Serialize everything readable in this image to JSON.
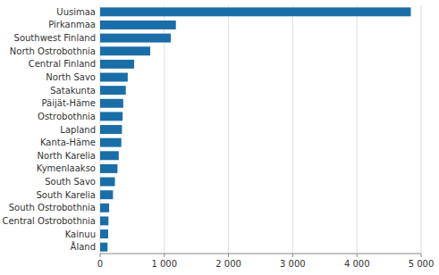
{
  "chart_data": {
    "type": "bar",
    "orientation": "horizontal",
    "categories": [
      "Uusimaa",
      "Pirkanmaa",
      "Southwest Finland",
      "North Ostrobothnia",
      "Central Finland",
      "North Savo",
      "Satakunta",
      "Päijät-Häme",
      "Ostrobothnia",
      "Lapland",
      "Kanta-Häme",
      "North Karelia",
      "Kymenlaakso",
      "South Savo",
      "South Karelia",
      "South Ostrobothnia",
      "Central Ostrobothnia",
      "Kainuu",
      "Åland"
    ],
    "values": [
      4840,
      1180,
      1100,
      780,
      530,
      430,
      400,
      360,
      350,
      340,
      330,
      290,
      270,
      230,
      200,
      140,
      130,
      125,
      115
    ],
    "color": "#1a6ea8",
    "xlim": [
      0,
      5000
    ],
    "xticks": [
      0,
      {
        "value": 1000,
        "label": "1 000"
      },
      {
        "value": 2000,
        "label": "2 000"
      },
      {
        "value": 3000,
        "label": "3 000"
      },
      {
        "value": 4000,
        "label": "4 000"
      },
      {
        "value": 5000,
        "label": "5 000"
      }
    ],
    "grid": true
  }
}
